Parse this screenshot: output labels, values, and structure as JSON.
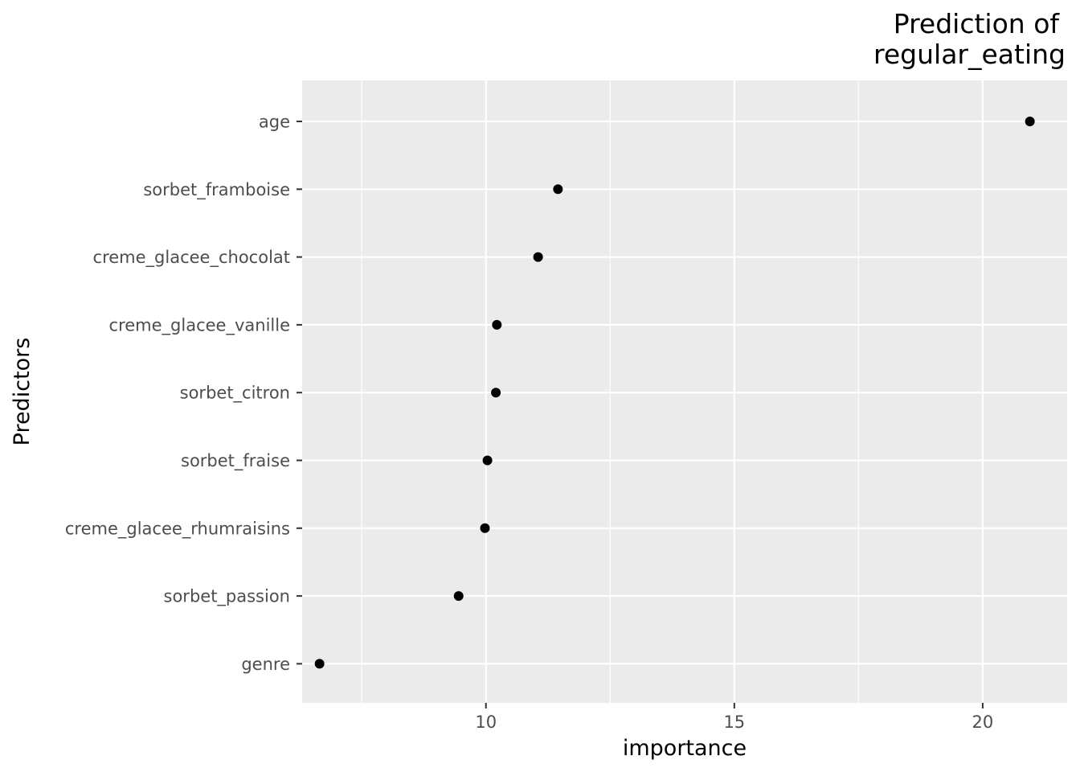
{
  "chart_data": {
    "type": "scatter",
    "title_lines": [
      "Prediction of",
      "regular_eating"
    ],
    "xlabel": "importance",
    "ylabel": "Predictors",
    "xlim": [
      6.3,
      21.7
    ],
    "x_ticks": [
      10,
      15,
      20
    ],
    "x_tick_labels": [
      "10",
      "15",
      "20"
    ],
    "categories": [
      "age",
      "sorbet_framboise",
      "creme_glacee_chocolat",
      "creme_glacee_vanille",
      "sorbet_citron",
      "sorbet_fraise",
      "creme_glacee_rhumraisins",
      "sorbet_passion",
      "genre"
    ],
    "values": [
      20.95,
      11.45,
      11.05,
      10.22,
      10.2,
      10.03,
      9.98,
      9.45,
      6.65
    ],
    "grid": true,
    "legend": "none",
    "colors": {
      "panel_background": "#ebebeb",
      "grid_line": "#ffffff",
      "point": "#000000",
      "tick_label": "#4d4d4d",
      "tick_mark": "#333333"
    }
  }
}
